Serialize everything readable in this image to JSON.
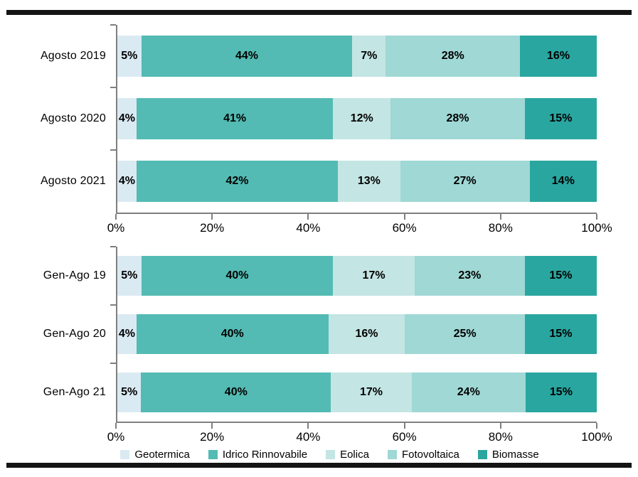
{
  "colors": {
    "geotermica": "#daeaf3",
    "idrico_rinnovabile": "#53bbb3",
    "eolica": "#c3e5e3",
    "fotovoltaica": "#9fd8d5",
    "biomasse": "#2aa6a0",
    "axis": "#7f7f7f",
    "rule": "#141414",
    "data_label": "#000000"
  },
  "legend": {
    "items": [
      {
        "label": "Geotermica",
        "color": "#daeaf3"
      },
      {
        "label": "Idrico Rinnovabile",
        "color": "#53bbb3"
      },
      {
        "label": "Eolica",
        "color": "#c3e5e3"
      },
      {
        "label": "Fotovoltaica",
        "color": "#9fd8d5"
      },
      {
        "label": "Biomasse",
        "color": "#2aa6a0"
      }
    ]
  },
  "chart_data": [
    {
      "type": "bar",
      "orientation": "horizontal",
      "stacked": true,
      "unit": "%",
      "title": "",
      "xlabel": "",
      "ylabel": "",
      "xlim": [
        0,
        100
      ],
      "grid": false,
      "legend_position": "bottom",
      "categories": [
        "Agosto 2019",
        "Agosto 2020",
        "Agosto 2021"
      ],
      "x_ticks": [
        "0%",
        "20%",
        "40%",
        "60%",
        "80%",
        "100%"
      ],
      "series": [
        {
          "name": "Geotermica",
          "color": "#daeaf3",
          "values": [
            5,
            4,
            4
          ]
        },
        {
          "name": "Idrico Rinnovabile",
          "color": "#53bbb3",
          "values": [
            44,
            41,
            42
          ]
        },
        {
          "name": "Eolica",
          "color": "#c3e5e3",
          "values": [
            7,
            12,
            13
          ]
        },
        {
          "name": "Fotovoltaica",
          "color": "#9fd8d5",
          "values": [
            28,
            28,
            27
          ]
        },
        {
          "name": "Biomasse",
          "color": "#2aa6a0",
          "values": [
            16,
            15,
            14
          ]
        }
      ]
    },
    {
      "type": "bar",
      "orientation": "horizontal",
      "stacked": true,
      "unit": "%",
      "title": "",
      "xlabel": "",
      "ylabel": "",
      "xlim": [
        0,
        100
      ],
      "grid": false,
      "legend_position": "bottom",
      "categories": [
        "Gen-Ago 19",
        "Gen-Ago 20",
        "Gen-Ago 21"
      ],
      "x_ticks": [
        "0%",
        "20%",
        "40%",
        "60%",
        "80%",
        "100%"
      ],
      "series": [
        {
          "name": "Geotermica",
          "color": "#daeaf3",
          "values": [
            5,
            4,
            5
          ]
        },
        {
          "name": "Idrico Rinnovabile",
          "color": "#53bbb3",
          "values": [
            40,
            40,
            40
          ]
        },
        {
          "name": "Eolica",
          "color": "#c3e5e3",
          "values": [
            17,
            16,
            17
          ]
        },
        {
          "name": "Fotovoltaica",
          "color": "#9fd8d5",
          "values": [
            23,
            25,
            24
          ]
        },
        {
          "name": "Biomasse",
          "color": "#2aa6a0",
          "values": [
            15,
            15,
            15
          ]
        }
      ]
    }
  ]
}
